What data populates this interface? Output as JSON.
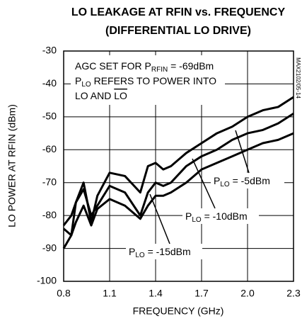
{
  "chart_data": {
    "type": "line",
    "title": [
      "LO LEAKAGE AT RFIN vs. FREQUENCY",
      "(DIFFERENTIAL LO DRIVE)"
    ],
    "x_label": "FREQUENCY (GHz)",
    "y_label": "LO POWER AT RFIN (dBm)",
    "side_note": "MAX2102/05-14",
    "x": [
      0.8,
      0.85,
      0.88,
      0.93,
      0.98,
      1.02,
      1.1,
      1.2,
      1.3,
      1.35,
      1.4,
      1.45,
      1.5,
      1.6,
      1.7,
      1.8,
      1.9,
      2.0,
      2.1,
      2.2,
      2.3
    ],
    "series": [
      {
        "name": [
          "P",
          "LO",
          " = -5dBm"
        ],
        "color": "#000000",
        "values": [
          -84,
          -86,
          -76,
          -70,
          -82,
          -74,
          -67,
          -68,
          -73,
          -65,
          -64,
          -66,
          -65,
          -61,
          -58,
          -55,
          -53,
          -50,
          -48,
          -47,
          -44
        ]
      },
      {
        "name": [
          "P",
          "LO",
          " = -10dBm"
        ],
        "color": "#000000",
        "values": [
          -83,
          -80,
          -76,
          -72,
          -80,
          -77,
          -71,
          -73,
          -80,
          -73,
          -70,
          -71,
          -70,
          -65,
          -62,
          -60,
          -57,
          -55,
          -54,
          -52,
          -49
        ]
      },
      {
        "name": [
          "P",
          "LO",
          " = -15dBm"
        ],
        "color": "#000000",
        "values": [
          -90,
          -86,
          -82,
          -77,
          -83,
          -78,
          -75,
          -77,
          -81,
          -77,
          -74,
          -74,
          -73,
          -70,
          -66,
          -64,
          -62,
          -60,
          -58,
          -57,
          -55
        ]
      }
    ],
    "annotations": [
      [
        "AGC SET FOR P",
        "RFIN",
        " = -69dBm"
      ],
      [
        "P",
        "LO",
        " REFERS TO POWER INTO"
      ],
      [
        "LO AND ",
        "LO"
      ]
    ],
    "xlim": [
      0.8,
      2.3
    ],
    "xticks": [
      0.8,
      1.1,
      1.4,
      1.7,
      {
        "value": 2,
        "label": "2.0"
      },
      2.3
    ],
    "ylim": [
      -100,
      -30
    ],
    "yticks": [
      -30,
      -40,
      -50,
      -60,
      -70,
      -80,
      -90,
      -100
    ],
    "grid": true
  }
}
